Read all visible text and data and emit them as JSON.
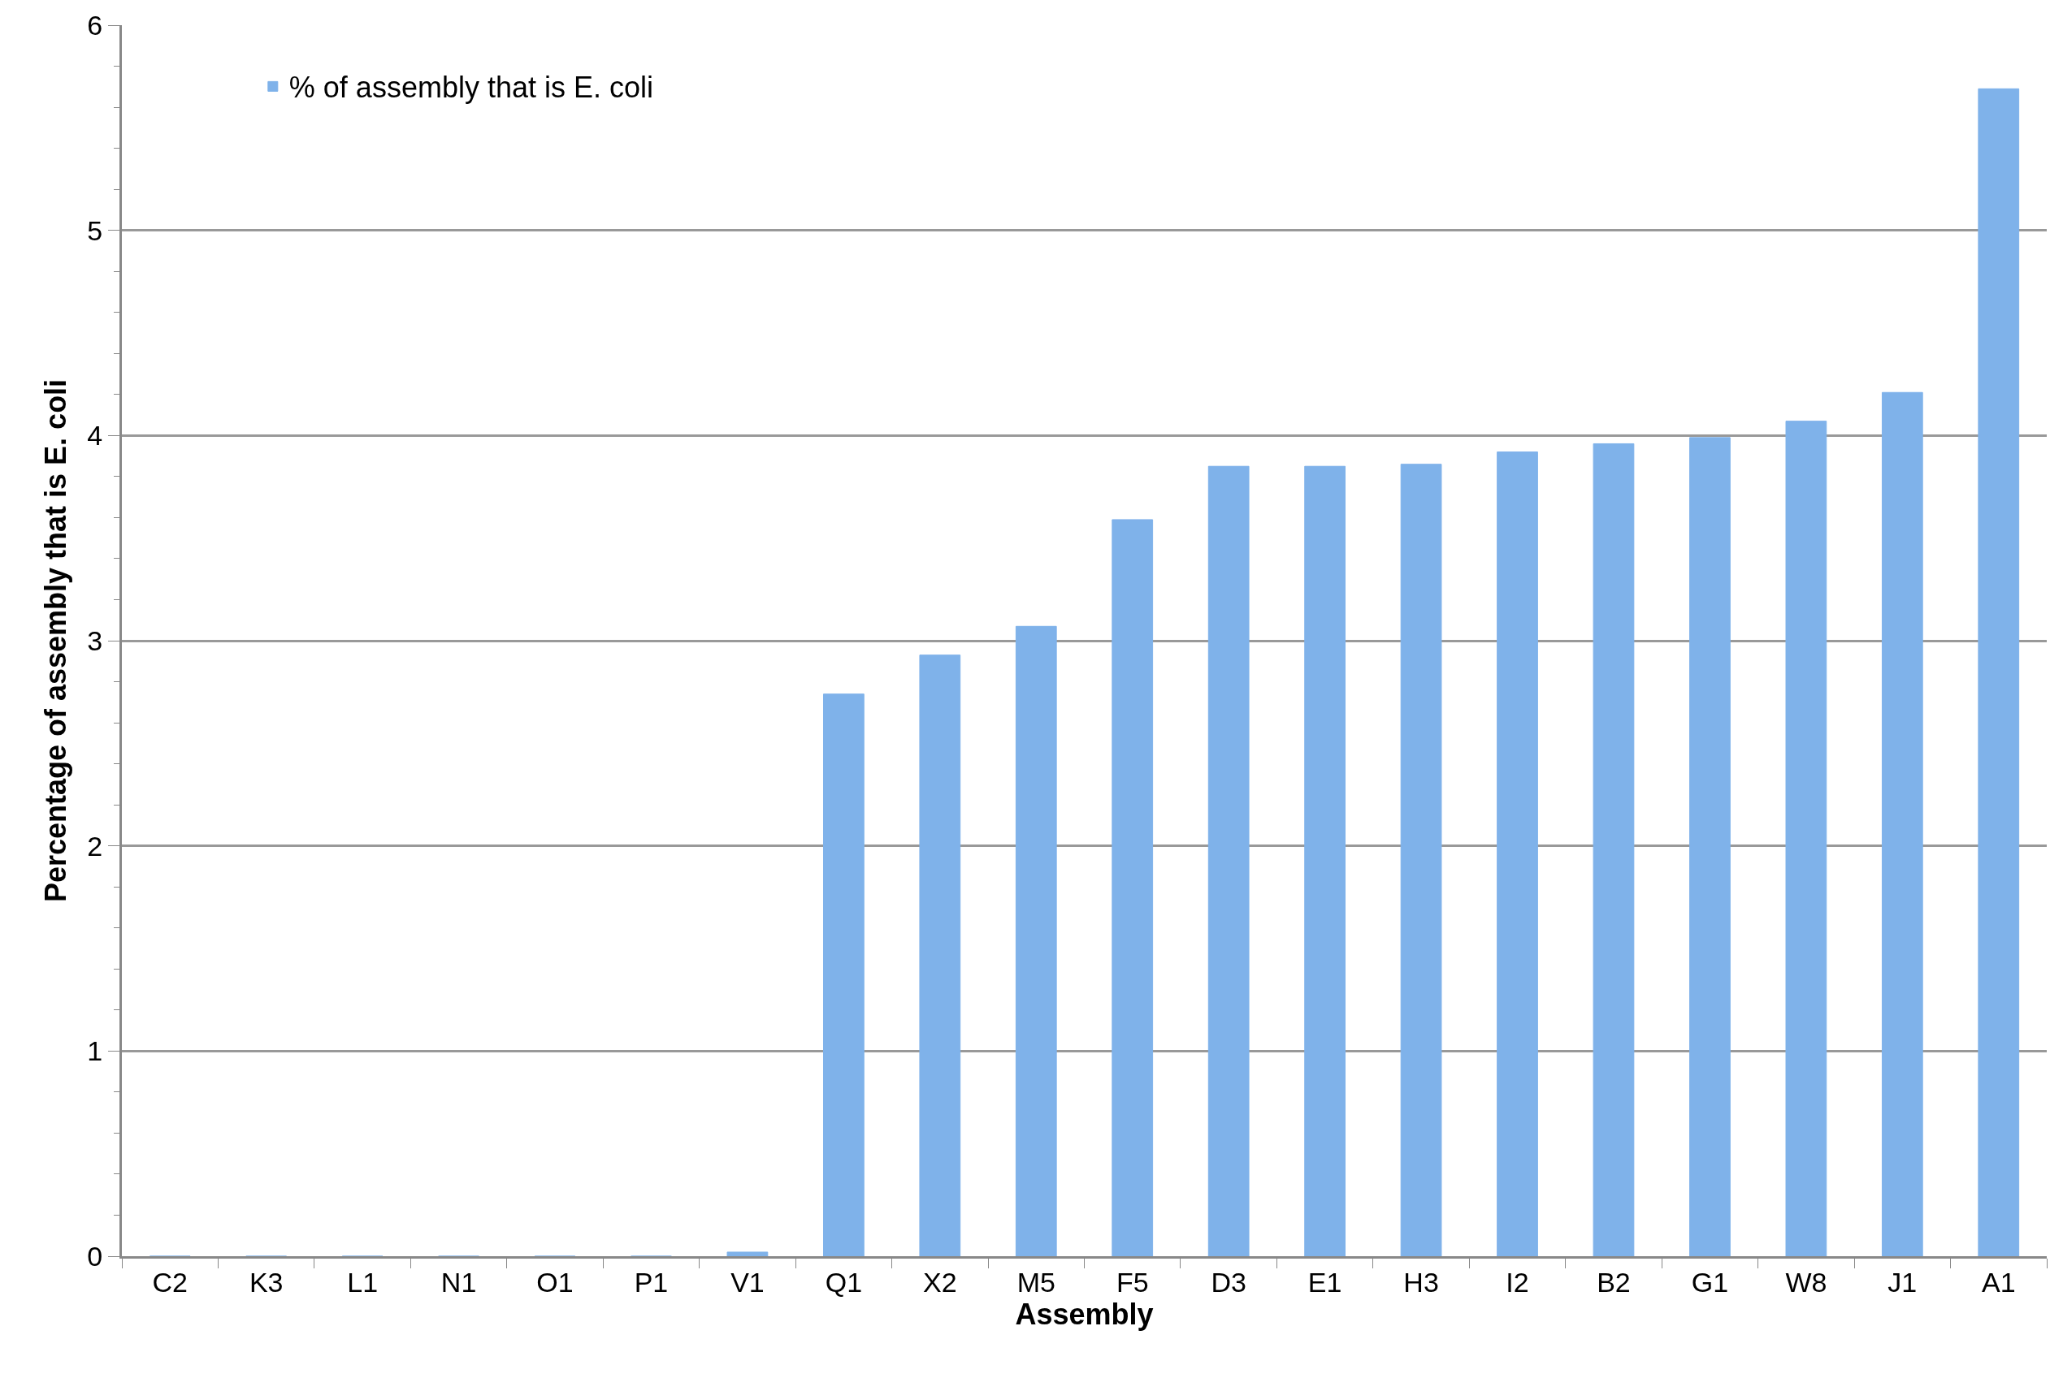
{
  "chart_data": {
    "type": "bar",
    "xlabel": "Assembly",
    "ylabel": "Percentage of assembly that is E. coli",
    "categories": [
      "C2",
      "K3",
      "L1",
      "N1",
      "O1",
      "P1",
      "V1",
      "Q1",
      "X2",
      "M5",
      "F5",
      "D3",
      "E1",
      "H3",
      "I2",
      "B2",
      "G1",
      "W8",
      "J1",
      "A1"
    ],
    "series": [
      {
        "name": "% of assembly that is E. coli",
        "color": "#7fb2ea",
        "values": [
          0,
          0,
          0,
          0,
          0,
          0,
          0.02,
          2.74,
          2.93,
          3.07,
          3.59,
          3.85,
          3.85,
          3.86,
          3.92,
          3.96,
          3.99,
          4.07,
          4.21,
          5.69
        ]
      }
    ],
    "ylim": [
      0,
      6
    ],
    "yticks": [
      0,
      {
        "value": 0.2,
        "label": null
      },
      {
        "value": 0.4,
        "label": null
      },
      {
        "value": 0.6,
        "label": null
      },
      {
        "value": 0.8,
        "label": null
      },
      1,
      {
        "value": 1.2,
        "label": null
      },
      {
        "value": 1.4,
        "label": null
      },
      {
        "value": 1.6,
        "label": null
      },
      {
        "value": 1.8,
        "label": null
      },
      2,
      {
        "value": 2.2,
        "label": null
      },
      {
        "value": 2.4,
        "label": null
      },
      {
        "value": 2.6,
        "label": null
      },
      {
        "value": 2.8,
        "label": null
      },
      3,
      {
        "value": 3.2,
        "label": null
      },
      {
        "value": 3.4,
        "label": null
      },
      {
        "value": 3.6,
        "label": null
      },
      {
        "value": 3.8,
        "label": null
      },
      4,
      {
        "value": 4.2,
        "label": null
      },
      {
        "value": 4.4,
        "label": null
      },
      {
        "value": 4.6,
        "label": null
      },
      {
        "value": 4.8,
        "label": null
      },
      5,
      {
        "value": 5.2,
        "label": null
      },
      {
        "value": 5.4,
        "label": null
      },
      {
        "value": 5.6,
        "label": null
      },
      {
        "value": 5.8,
        "label": null
      },
      6
    ],
    "grid": "y",
    "legend": "top left"
  }
}
